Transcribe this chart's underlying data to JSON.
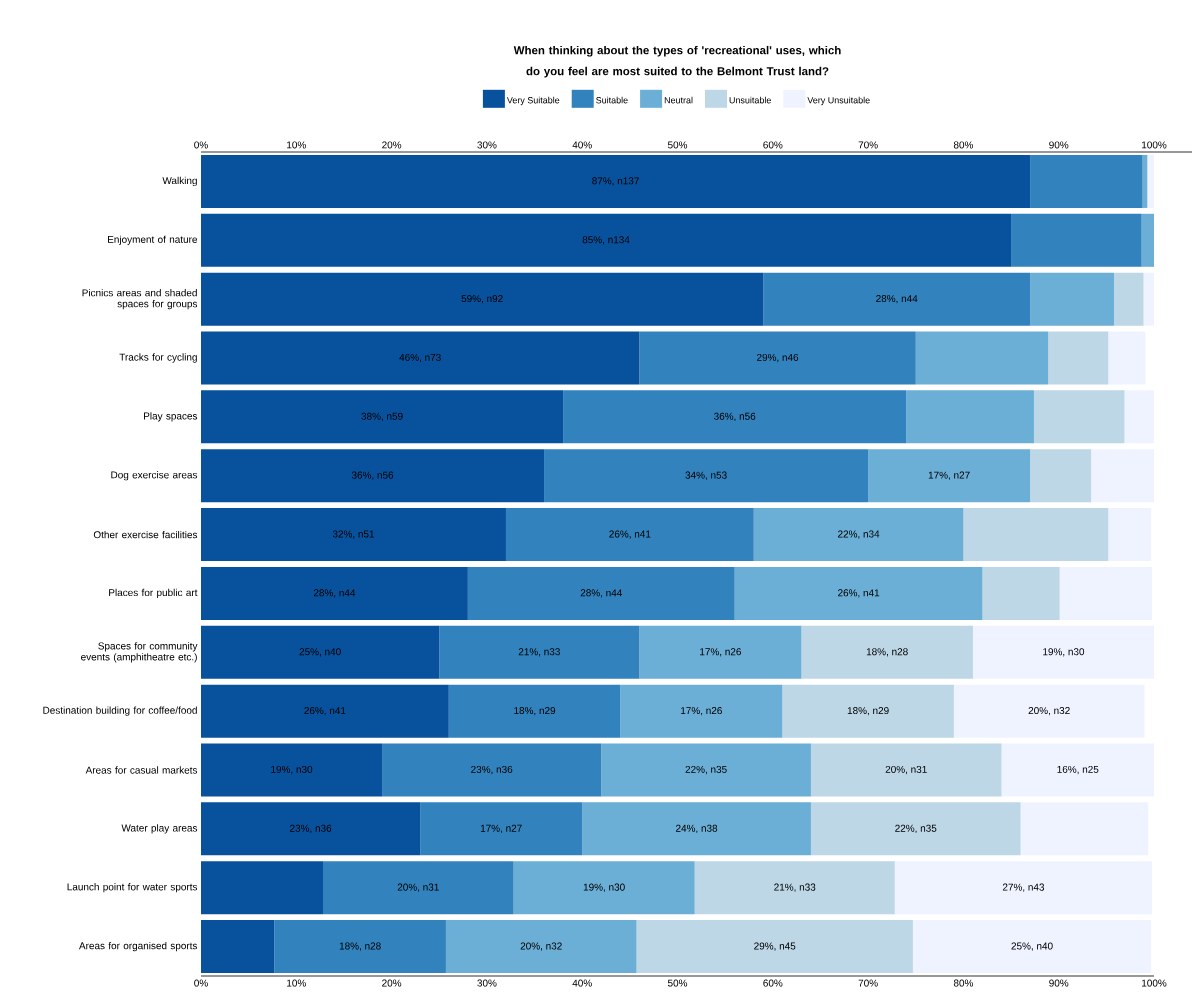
{
  "chart_data": {
    "type": "bar",
    "orientation": "horizontal",
    "stacked": true,
    "title": "When thinking about the types of 'recreational' uses, which do you feel are most suited to the Belmont Trust land?",
    "categories": [
      "Walking",
      "Enjoyment of nature",
      "Picnics areas and shaded spaces for groups",
      "Tracks for cycling",
      "Play spaces",
      "Dog exercise areas",
      "Other exercise facilities",
      "Places for public art",
      "Spaces for community events (amphitheatre etc.)",
      "Destination building for coffee/food",
      "Areas for casual markets",
      "Water play areas",
      "Launch point for water sports",
      "Areas for organised sports"
    ],
    "series": [
      {
        "name": "Very Suitable",
        "color": "#08519c",
        "values": [
          87,
          85,
          59,
          46,
          38,
          36,
          32,
          28,
          25,
          26,
          19,
          23,
          12.8,
          7.7
        ],
        "value_labels": [
          "87%, n137",
          "85%, n134",
          "59%, n92",
          "46%, n73",
          "38%, n59",
          "36%, n56",
          "32%, n51",
          "28%, n44",
          "25%, n40",
          "26%, n41",
          "19%, n30",
          "23%, n36",
          null,
          null
        ]
      },
      {
        "name": "Suitable",
        "color": "#3182bd",
        "values": [
          11.8,
          13.7,
          28,
          29,
          36,
          34,
          26,
          28,
          21,
          18,
          23,
          17,
          20,
          18
        ],
        "value_labels": [
          null,
          null,
          "28%, n44",
          "29%, n46",
          "36%, n56",
          "34%, n53",
          "26%, n41",
          "28%, n44",
          "21%, n33",
          "18%, n29",
          "23%, n36",
          "17%, n27",
          "20%, n31",
          "18%, n28"
        ]
      },
      {
        "name": "Neutral",
        "color": "#6baed6",
        "values": [
          0.5,
          1.3,
          8.8,
          13.9,
          13.4,
          17,
          22,
          26,
          17,
          17,
          22,
          24,
          19,
          20
        ],
        "value_labels": [
          null,
          null,
          null,
          null,
          null,
          "17%, n27",
          "22%, n34",
          "26%, n41",
          "17%, n26",
          "17%, n26",
          "22%, n35",
          "24%, n38",
          "19%, n30",
          "20%, n32"
        ]
      },
      {
        "name": "Unsuitable",
        "color": "#bdd7e7",
        "values": [
          0,
          0,
          3.1,
          6.3,
          9.5,
          6.4,
          15.2,
          8.1,
          18,
          18,
          20,
          22,
          21,
          29
        ],
        "value_labels": [
          null,
          null,
          null,
          null,
          null,
          null,
          null,
          null,
          "18%, n28",
          "18%, n29",
          "20%, n31",
          "22%, n35",
          "21%, n33",
          "29%, n45"
        ]
      },
      {
        "name": "Very Unsuitable",
        "color": "#eff3ff",
        "values": [
          0.7,
          0,
          1.1,
          3.9,
          3.1,
          6.6,
          4.5,
          9.7,
          19,
          20,
          16,
          13.4,
          27,
          25
        ],
        "value_labels": [
          null,
          null,
          null,
          null,
          null,
          null,
          null,
          null,
          "19%, n30",
          "20%, n32",
          "16%, n25",
          null,
          "27%, n43",
          "25%, n40"
        ]
      }
    ],
    "xlim": [
      0,
      100
    ],
    "xticks": [
      {
        "value": 0,
        "label": "0%"
      },
      {
        "value": 10,
        "label": "10%"
      },
      {
        "value": 20,
        "label": "20%"
      },
      {
        "value": 30,
        "label": "30%"
      },
      {
        "value": 40,
        "label": "40%"
      },
      {
        "value": 50,
        "label": "50%"
      },
      {
        "value": 60,
        "label": "60%"
      },
      {
        "value": 70,
        "label": "70%"
      },
      {
        "value": 80,
        "label": "80%"
      },
      {
        "value": 90,
        "label": "90%"
      },
      {
        "value": 100,
        "label": "100%"
      }
    ],
    "x2lim": [
      0,
      100
    ],
    "x2ticks": [
      {
        "value": 0,
        "label": "0%"
      },
      {
        "value": 10,
        "label": "10%"
      },
      {
        "value": 20,
        "label": "20%"
      },
      {
        "value": 30,
        "label": "30%"
      },
      {
        "value": 40,
        "label": "40%"
      },
      {
        "value": 50,
        "label": "50%"
      },
      {
        "value": 60,
        "label": "60%"
      },
      {
        "value": 70,
        "label": "70%"
      },
      {
        "value": 80,
        "label": "80%"
      },
      {
        "value": 90,
        "label": "90%"
      },
      {
        "value": 100,
        "label": "100%"
      }
    ],
    "legend": "top",
    "grid": false
  }
}
